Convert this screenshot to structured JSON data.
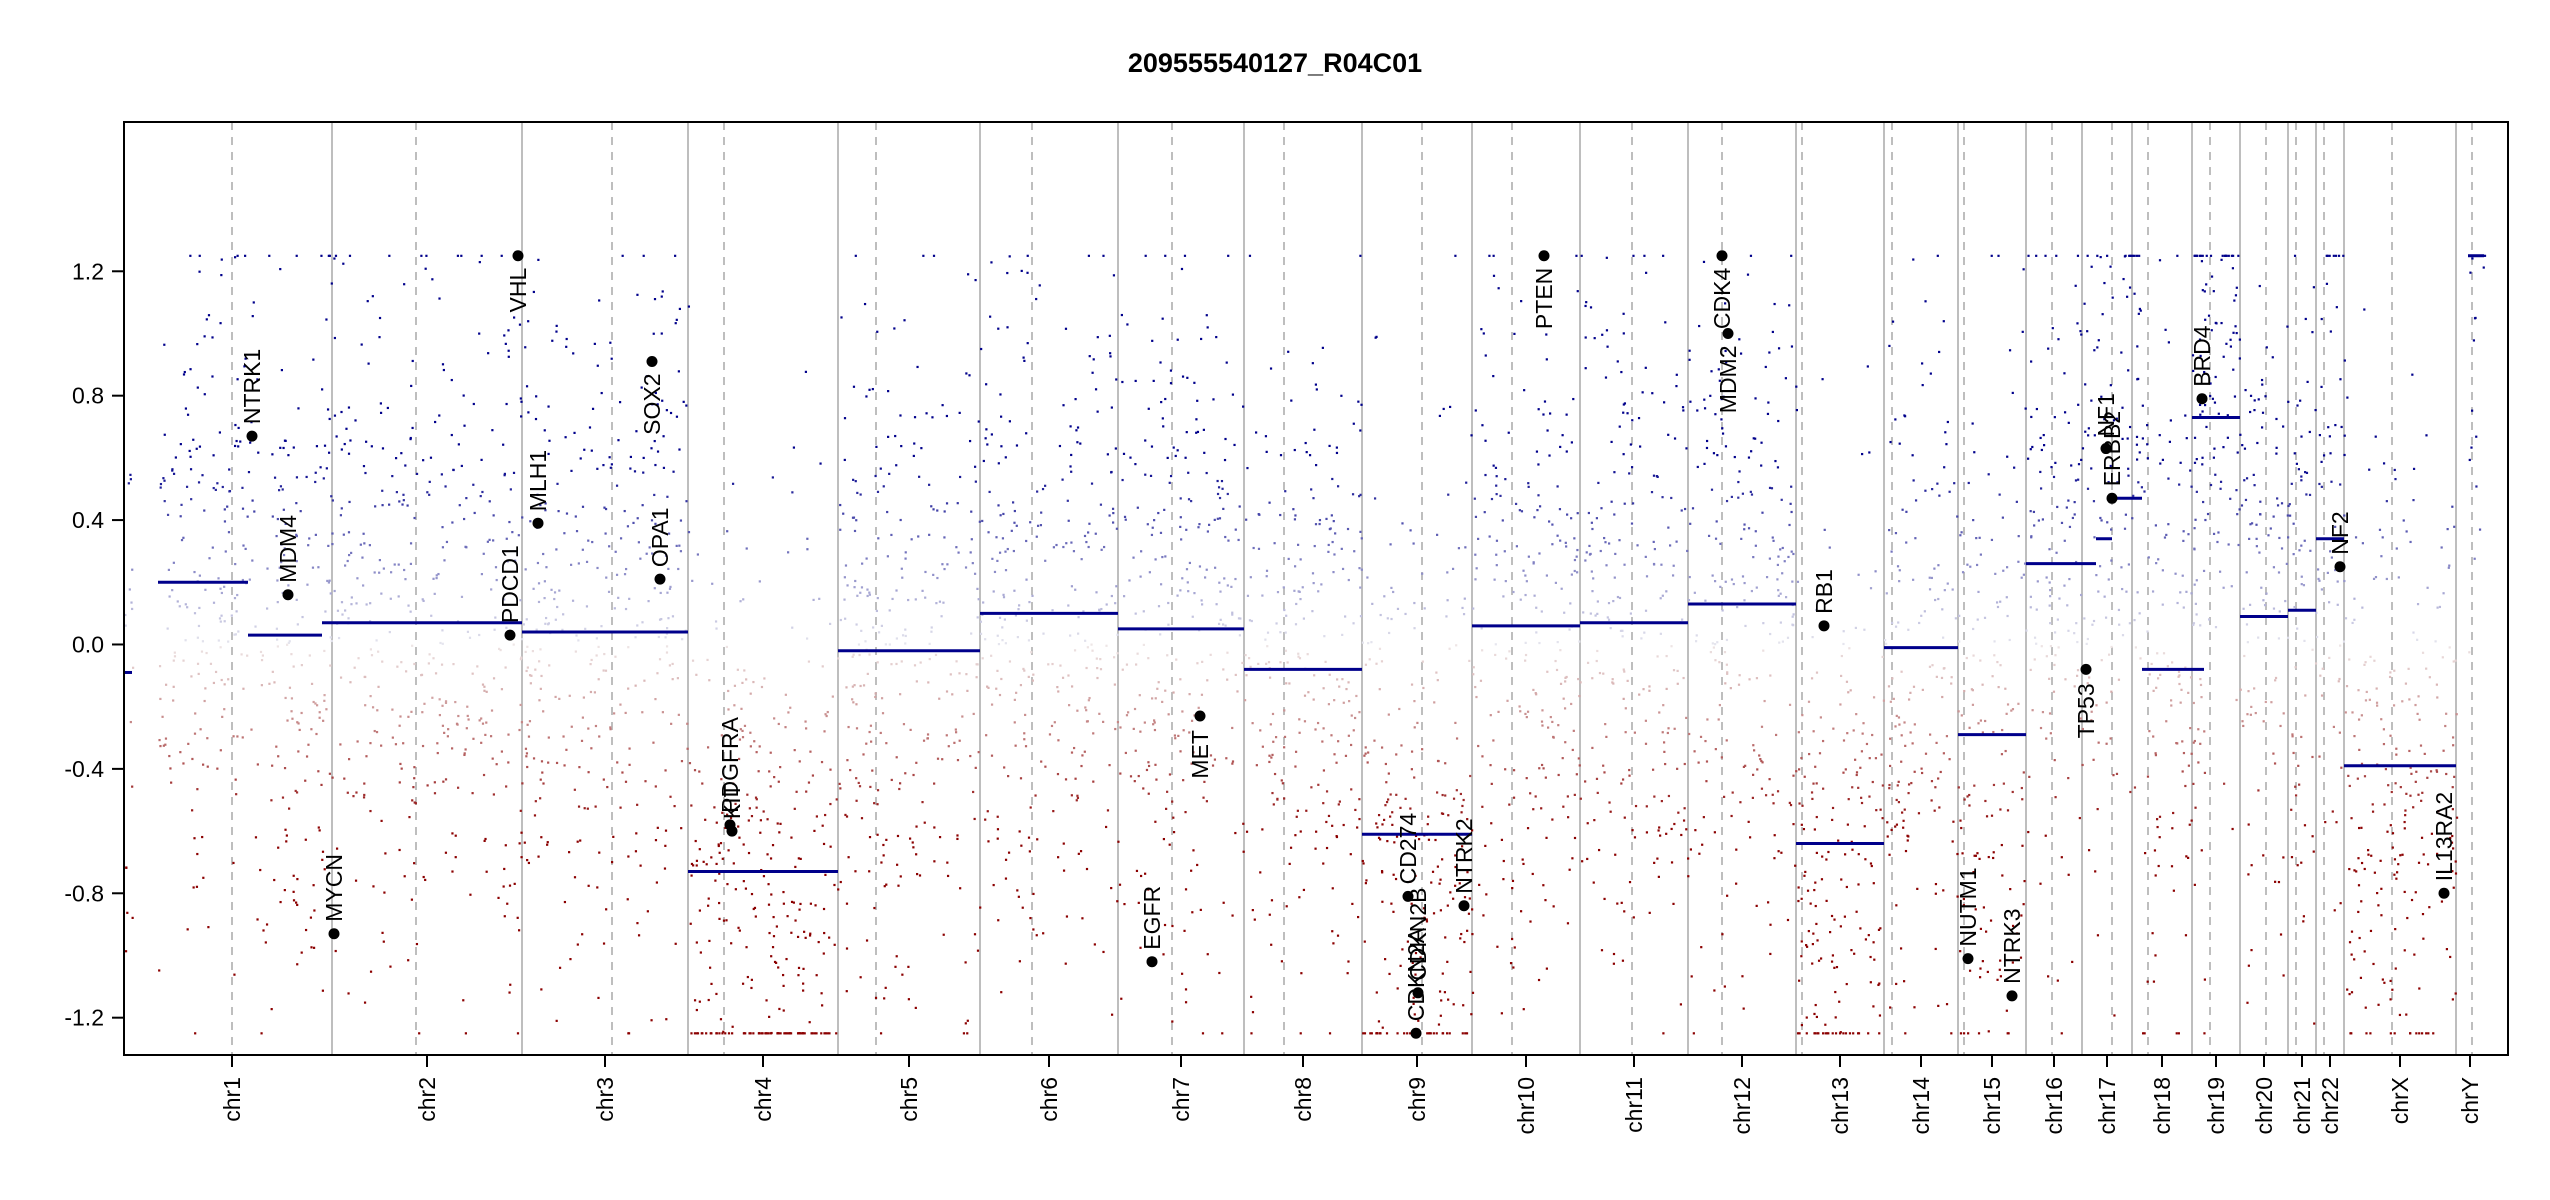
{
  "chart_data": {
    "type": "scatter",
    "title": "209555540127_R04C01",
    "xlabel": "",
    "ylabel": "",
    "ylim": [
      -1.32,
      1.68
    ],
    "yticks": [
      -1.2,
      -0.8,
      -0.4,
      0.0,
      0.4,
      0.8,
      1.2
    ],
    "ytick_labels": [
      "-1.2",
      "-0.8",
      "-0.4",
      "0.0",
      "0.4",
      "0.8",
      "1.2"
    ],
    "grid": "vertical dashed at centromeres",
    "colors": {
      "gain": "#00008B",
      "loss": "#8B0000",
      "segment": "#00008B",
      "gene_point": "#000000",
      "chrom_boundary": "#BEBEBE"
    },
    "chromosomes": [
      {
        "name": "chr1",
        "start": 0,
        "centromere": 0.5,
        "end": 1.0
      },
      {
        "name": "chr2",
        "start": 1.0,
        "centromere": 1.42,
        "end": 1.95
      },
      {
        "name": "chr3",
        "start": 1.95,
        "centromere": 2.4,
        "end": 2.78
      },
      {
        "name": "chr4",
        "start": 2.78,
        "centromere": 2.96,
        "end": 3.53
      },
      {
        "name": "chr5",
        "start": 3.53,
        "centromere": 3.72,
        "end": 4.24
      },
      {
        "name": "chr6",
        "start": 4.24,
        "centromere": 4.5,
        "end": 4.93
      },
      {
        "name": "chr7",
        "start": 4.93,
        "centromere": 5.2,
        "end": 5.56
      },
      {
        "name": "chr8",
        "start": 5.56,
        "centromere": 5.76,
        "end": 6.15
      },
      {
        "name": "chr9",
        "start": 6.15,
        "centromere": 6.45,
        "end": 6.7
      },
      {
        "name": "chr10",
        "start": 6.7,
        "centromere": 6.9,
        "end": 7.24
      },
      {
        "name": "chr11",
        "start": 7.24,
        "centromere": 7.5,
        "end": 7.78
      },
      {
        "name": "chr12",
        "start": 7.78,
        "centromere": 7.95,
        "end": 8.32
      },
      {
        "name": "chr13",
        "start": 8.32,
        "centromere": 8.35,
        "end": 8.76
      },
      {
        "name": "chr14",
        "start": 8.76,
        "centromere": 8.8,
        "end": 9.13
      },
      {
        "name": "chr15",
        "start": 9.13,
        "centromere": 9.16,
        "end": 9.47
      },
      {
        "name": "chr16",
        "start": 9.47,
        "centromere": 9.6,
        "end": 9.75
      },
      {
        "name": "chr17",
        "start": 9.75,
        "centromere": 9.9,
        "end": 10.0
      },
      {
        "name": "chr18",
        "start": 10.0,
        "centromere": 10.08,
        "end": 10.3
      },
      {
        "name": "chr19",
        "start": 10.3,
        "centromere": 10.39,
        "end": 10.54
      },
      {
        "name": "chr20",
        "start": 10.54,
        "centromere": 10.67,
        "end": 10.78
      },
      {
        "name": "chr21",
        "start": 10.78,
        "centromere": 10.82,
        "end": 10.92
      },
      {
        "name": "chr22",
        "start": 10.92,
        "centromere": 10.96,
        "end": 11.06
      },
      {
        "name": "chrX",
        "start": 11.06,
        "centromere": 11.3,
        "end": 11.62
      },
      {
        "name": "chrY",
        "start": 11.62,
        "centromere": 11.7,
        "end": 11.76
      }
    ],
    "segments": [
      {
        "chrom": "chr1",
        "x0": -0.04,
        "x1": 0.0,
        "y": -0.09
      },
      {
        "chrom": "chr1",
        "x0": 0.13,
        "x1": 0.58,
        "y": 0.2
      },
      {
        "chrom": "chr1",
        "x0": 0.58,
        "x1": 0.95,
        "y": 0.03
      },
      {
        "chrom": "chr2",
        "x0": 0.95,
        "x1": 1.95,
        "y": 0.07
      },
      {
        "chrom": "chr3",
        "x0": 1.95,
        "x1": 2.78,
        "y": 0.04
      },
      {
        "chrom": "chr4",
        "x0": 2.78,
        "x1": 3.53,
        "y": -0.73
      },
      {
        "chrom": "chr5",
        "x0": 3.53,
        "x1": 4.24,
        "y": -0.02
      },
      {
        "chrom": "chr6",
        "x0": 4.24,
        "x1": 4.93,
        "y": 0.1
      },
      {
        "chrom": "chr7",
        "x0": 4.93,
        "x1": 5.56,
        "y": 0.05
      },
      {
        "chrom": "chr8",
        "x0": 5.56,
        "x1": 6.15,
        "y": -0.08
      },
      {
        "chrom": "chr9",
        "x0": 6.15,
        "x1": 6.7,
        "y": -0.61
      },
      {
        "chrom": "chr10",
        "x0": 6.7,
        "x1": 7.24,
        "y": 0.06
      },
      {
        "chrom": "chr11",
        "x0": 7.24,
        "x1": 7.78,
        "y": 0.07
      },
      {
        "chrom": "chr12",
        "x0": 7.78,
        "x1": 8.32,
        "y": 0.13
      },
      {
        "chrom": "chr13",
        "x0": 8.32,
        "x1": 8.76,
        "y": -0.64
      },
      {
        "chrom": "chr14",
        "x0": 8.76,
        "x1": 9.13,
        "y": -0.01
      },
      {
        "chrom": "chr15",
        "x0": 9.13,
        "x1": 9.47,
        "y": -0.29
      },
      {
        "chrom": "chr16",
        "x0": 9.47,
        "x1": 9.82,
        "y": 0.26
      },
      {
        "chrom": "chr17",
        "x0": 9.82,
        "x1": 9.9,
        "y": 0.34
      },
      {
        "chrom": "chr17",
        "x0": 9.9,
        "x1": 10.05,
        "y": 0.47
      },
      {
        "chrom": "chr18",
        "x0": 10.05,
        "x1": 10.36,
        "y": -0.08
      },
      {
        "chrom": "chr19",
        "x0": 10.3,
        "x1": 10.54,
        "y": 0.73
      },
      {
        "chrom": "chr20",
        "x0": 10.54,
        "x1": 10.78,
        "y": 0.09
      },
      {
        "chrom": "chr21",
        "x0": 10.78,
        "x1": 10.92,
        "y": 0.11
      },
      {
        "chrom": "chr22",
        "x0": 10.92,
        "x1": 11.06,
        "y": 0.34
      },
      {
        "chrom": "chrX",
        "x0": 11.06,
        "x1": 11.62,
        "y": -0.39
      },
      {
        "chrom": "chrY",
        "x0": 11.68,
        "x1": 11.76,
        "y": 1.25
      }
    ],
    "genes": [
      {
        "name": "NTRK1",
        "x": 0.6,
        "y": 0.67
      },
      {
        "name": "MDM4",
        "x": 0.78,
        "y": 0.16
      },
      {
        "name": "MYCN",
        "x": 1.01,
        "y": -0.93
      },
      {
        "name": "PDCD1",
        "x": 1.89,
        "y": 0.03
      },
      {
        "name": "VHL",
        "x": 1.93,
        "y": 1.25
      },
      {
        "name": "MLH1",
        "x": 2.03,
        "y": 0.39
      },
      {
        "name": "SOX2",
        "x": 2.6,
        "y": 0.91
      },
      {
        "name": "OPA1",
        "x": 2.64,
        "y": 0.21
      },
      {
        "name": "PDGFRA",
        "x": 2.99,
        "y": -0.58
      },
      {
        "name": "KIT",
        "x": 3.0,
        "y": -0.6
      },
      {
        "name": "EGFR",
        "x": 5.1,
        "y": -1.02
      },
      {
        "name": "MET",
        "x": 5.34,
        "y": -0.23
      },
      {
        "name": "CD274",
        "x": 6.38,
        "y": -0.81
      },
      {
        "name": "CDKN2A",
        "x": 6.42,
        "y": -1.25
      },
      {
        "name": "CDKN2B",
        "x": 6.43,
        "y": -1.12
      },
      {
        "name": "NTRK2",
        "x": 6.66,
        "y": -0.84
      },
      {
        "name": "PTEN",
        "x": 7.06,
        "y": 1.25
      },
      {
        "name": "MDM2",
        "x": 7.98,
        "y": 1.0
      },
      {
        "name": "CDK4",
        "x": 7.95,
        "y": 1.25
      },
      {
        "name": "RB1",
        "x": 8.46,
        "y": 0.06
      },
      {
        "name": "NUTM1",
        "x": 9.18,
        "y": -1.01
      },
      {
        "name": "NTRK3",
        "x": 9.4,
        "y": -1.13
      },
      {
        "name": "TP53",
        "x": 9.77,
        "y": -0.08
      },
      {
        "name": "ERBB2",
        "x": 9.9,
        "y": 0.47
      },
      {
        "name": "NF1",
        "x": 9.87,
        "y": 0.63
      },
      {
        "name": "BRD4",
        "x": 10.35,
        "y": 0.79
      },
      {
        "name": "NF2",
        "x": 11.04,
        "y": 0.25
      },
      {
        "name": "IL13RA2",
        "x": 11.56,
        "y": -0.8
      }
    ],
    "gene_label_side": {
      "above": [
        "VHL",
        "PTEN",
        "CDK4",
        "MDM2",
        "SOX2"
      ],
      "below": [
        "TP53",
        "MET",
        "CD274",
        "CDKN2A",
        "CDKN2B",
        "NUTM1",
        "NTRK3",
        "IL13RA2",
        "EGFR",
        "PDGFRA",
        "KIT",
        "MYCN",
        "NTRK2"
      ]
    }
  }
}
